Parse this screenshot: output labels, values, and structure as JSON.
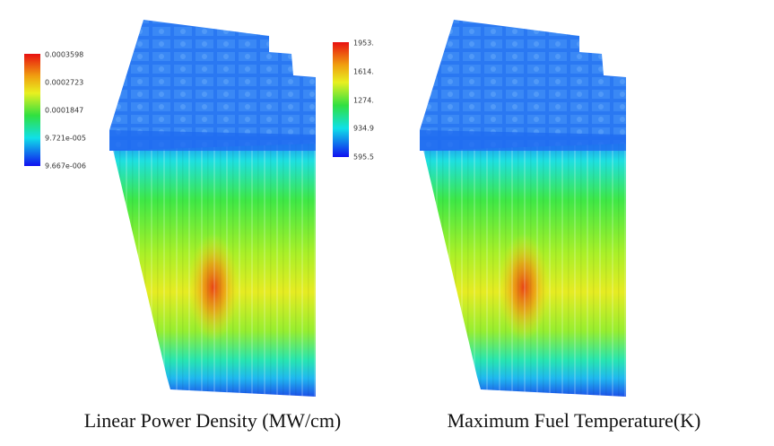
{
  "panels": [
    {
      "caption": "Linear Power Density (MW/cm)",
      "colorbar": [
        "0.0003598",
        "0.0002723",
        "0.0001847",
        "9.721e-005",
        "9.667e-006"
      ]
    },
    {
      "caption": "Maximum Fuel Temperature(K)",
      "colorbar": [
        "1953.",
        "1614.",
        "1274.",
        "934.9",
        "595.5"
      ]
    }
  ]
}
